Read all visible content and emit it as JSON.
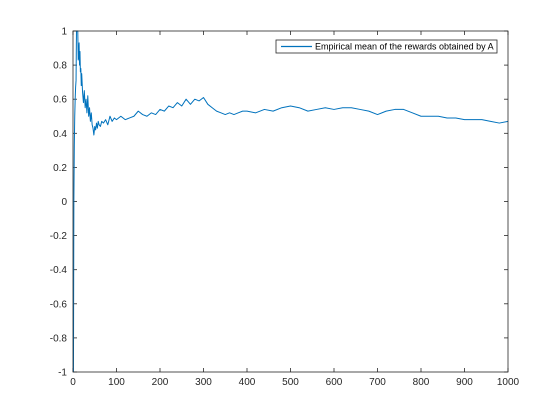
{
  "chart_data": {
    "type": "line",
    "title": "",
    "xlabel": "",
    "ylabel": "",
    "xlim": [
      0,
      1000
    ],
    "ylim": [
      -1,
      1
    ],
    "xticks": [
      0,
      100,
      200,
      300,
      400,
      500,
      600,
      700,
      800,
      900,
      1000
    ],
    "yticks": [
      -1,
      -0.8,
      -0.6,
      -0.4,
      -0.2,
      0,
      0.2,
      0.4,
      0.6,
      0.8,
      1
    ],
    "grid": false,
    "legend_position": "top-right",
    "colors": {
      "series": "#0072bd",
      "axis": "#262626"
    },
    "series": [
      {
        "name": "Empirical mean of the rewards obtained by A",
        "x": [
          1,
          2,
          3,
          4,
          5,
          6,
          7,
          8,
          9,
          10,
          11,
          12,
          13,
          14,
          15,
          16,
          17,
          18,
          19,
          20,
          22,
          24,
          26,
          28,
          30,
          32,
          34,
          36,
          38,
          40,
          42,
          44,
          46,
          48,
          50,
          52,
          54,
          56,
          58,
          60,
          63,
          66,
          70,
          75,
          80,
          85,
          90,
          95,
          100,
          110,
          120,
          130,
          140,
          150,
          160,
          170,
          180,
          190,
          200,
          210,
          220,
          230,
          240,
          250,
          260,
          270,
          280,
          290,
          300,
          310,
          320,
          330,
          340,
          350,
          360,
          370,
          380,
          390,
          400,
          420,
          440,
          460,
          480,
          500,
          520,
          540,
          560,
          580,
          600,
          620,
          640,
          660,
          680,
          700,
          720,
          740,
          760,
          780,
          800,
          820,
          840,
          860,
          880,
          900,
          920,
          940,
          960,
          980,
          1000
        ],
        "y": [
          -1,
          0,
          0.33,
          0.5,
          0.6,
          0.67,
          0.71,
          1,
          1,
          1,
          1,
          0.83,
          0.85,
          0.93,
          0.8,
          0.88,
          0.76,
          0.78,
          0.68,
          0.75,
          0.64,
          0.58,
          0.65,
          0.55,
          0.6,
          0.52,
          0.62,
          0.5,
          0.55,
          0.47,
          0.52,
          0.45,
          0.43,
          0.39,
          0.44,
          0.42,
          0.46,
          0.43,
          0.47,
          0.45,
          0.44,
          0.47,
          0.46,
          0.48,
          0.45,
          0.5,
          0.47,
          0.49,
          0.48,
          0.5,
          0.48,
          0.49,
          0.5,
          0.53,
          0.51,
          0.5,
          0.52,
          0.51,
          0.54,
          0.53,
          0.56,
          0.55,
          0.58,
          0.56,
          0.6,
          0.57,
          0.6,
          0.59,
          0.61,
          0.57,
          0.55,
          0.53,
          0.52,
          0.51,
          0.52,
          0.51,
          0.52,
          0.53,
          0.53,
          0.52,
          0.54,
          0.53,
          0.55,
          0.56,
          0.55,
          0.53,
          0.54,
          0.55,
          0.54,
          0.55,
          0.55,
          0.54,
          0.53,
          0.51,
          0.53,
          0.54,
          0.54,
          0.52,
          0.5,
          0.5,
          0.5,
          0.49,
          0.49,
          0.48,
          0.48,
          0.48,
          0.47,
          0.46,
          0.47
        ]
      }
    ]
  }
}
